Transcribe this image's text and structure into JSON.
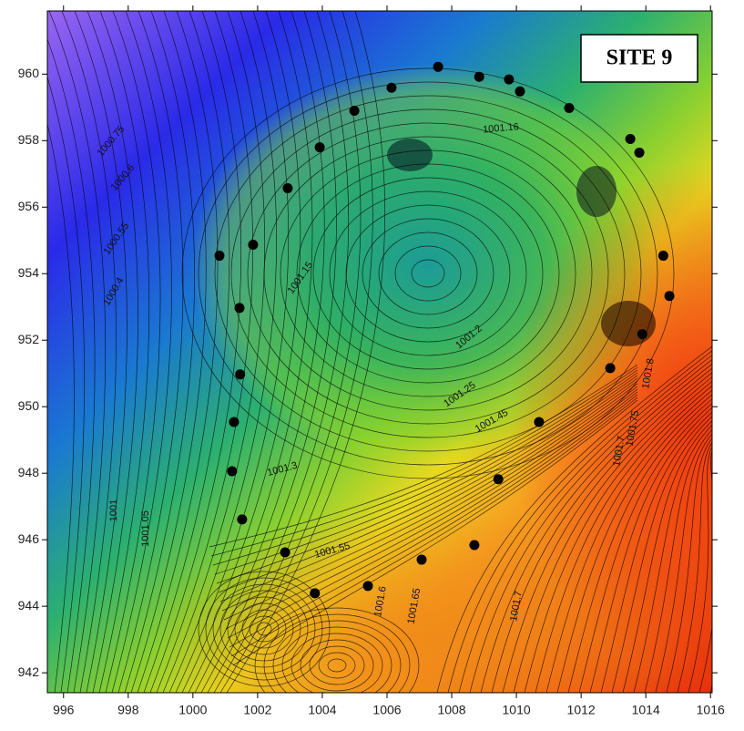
{
  "chart_data": {
    "type": "contour",
    "title": "SITE 9",
    "xlim": [
      995.5,
      1016.05
    ],
    "ylim": [
      941.4,
      961.9
    ],
    "xticks": [
      996,
      998,
      1000,
      1002,
      1004,
      1006,
      1008,
      1010,
      1012,
      1014,
      1016
    ],
    "yticks": [
      942,
      944,
      946,
      948,
      950,
      952,
      954,
      956,
      958,
      960
    ],
    "samples": {
      "x": [
        1007.58,
        1008.85,
        1009.77,
        1010.11,
        1011.63,
        1006.14,
        1004.99,
        1003.92,
        1002.93,
        1001.86,
        1000.82,
        1001.44,
        1001.46,
        1001.27,
        1001.21,
        1001.52,
        1002.85,
        1003.77,
        1005.41,
        1007.07,
        1008.7,
        1009.44,
        1010.7,
        1012.9,
        1013.89,
        1013.52,
        1013.8,
        1014.54,
        1014.73
      ],
      "y": [
        960.22,
        959.92,
        959.84,
        959.48,
        958.98,
        959.59,
        958.9,
        957.8,
        956.57,
        954.87,
        954.54,
        952.97,
        950.97,
        949.54,
        948.06,
        946.61,
        945.62,
        944.39,
        944.61,
        945.4,
        945.84,
        947.82,
        949.54,
        951.16,
        952.18,
        958.05,
        957.64,
        954.54,
        953.33
      ]
    },
    "contour_labels": [
      "1000.75",
      "1000.6",
      "1000.55",
      "1000.4",
      "1001.16",
      "1001.15",
      "1001.2",
      "1001.25",
      "1001.3",
      "1001.45",
      "1001.55",
      "1001.6",
      "1001.65",
      "1001.7",
      "1001.7",
      "1001.75",
      "1001.8",
      "1001",
      "1001.05"
    ]
  }
}
